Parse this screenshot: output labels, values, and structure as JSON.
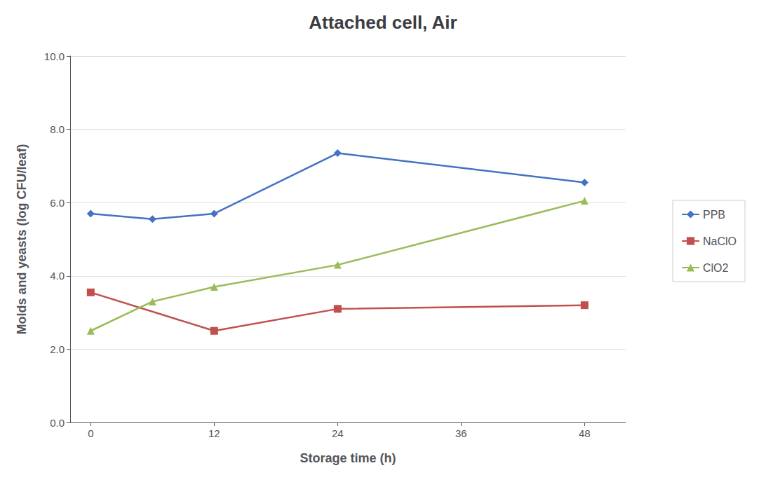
{
  "chart_data": {
    "type": "line",
    "title": "Attached cell, Air",
    "xlabel": "Storage time (h)",
    "ylabel": "Molds and yeasts (log CFU/leaf)",
    "x": [
      0,
      6,
      12,
      24,
      48
    ],
    "xlim": [
      -2,
      52
    ],
    "xticks": [
      0,
      12,
      24,
      36,
      48
    ],
    "ylim": [
      0.0,
      10.0
    ],
    "yticks": [
      {
        "value": 0,
        "label": "0.0"
      },
      {
        "value": 2,
        "label": "2.0"
      },
      {
        "value": 4,
        "label": "4.0"
      },
      {
        "value": 6,
        "label": "6.0"
      },
      {
        "value": 8,
        "label": "8.0"
      },
      {
        "value": 10,
        "label": "10.0"
      }
    ],
    "grid": true,
    "legend": "right",
    "series": [
      {
        "name": "PPB",
        "color": "#4472C4",
        "marker": "diamond",
        "values": [
          5.7,
          5.55,
          5.7,
          7.35,
          6.55
        ]
      },
      {
        "name": "NaClO",
        "color": "#C0504D",
        "marker": "square",
        "values": [
          3.55,
          null,
          2.5,
          3.1,
          3.2
        ]
      },
      {
        "name": "ClO2",
        "color": "#9BBB59",
        "marker": "triangle",
        "values": [
          2.5,
          3.3,
          3.7,
          4.3,
          6.05
        ]
      }
    ]
  }
}
